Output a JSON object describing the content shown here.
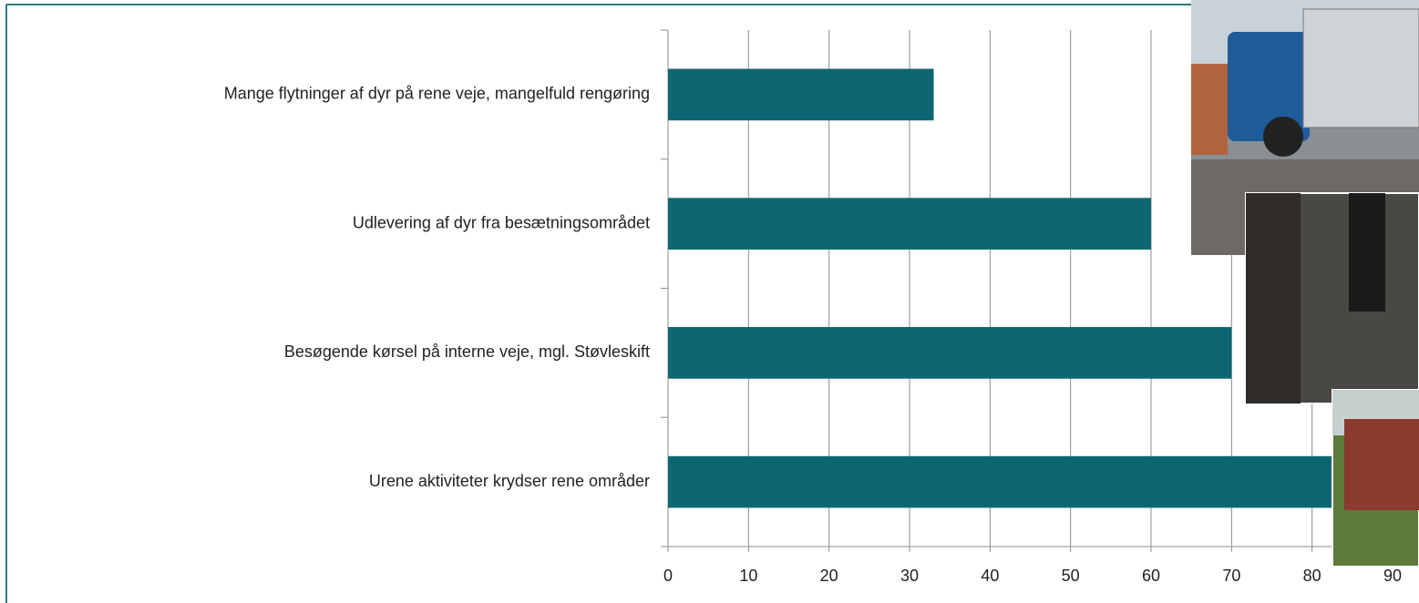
{
  "chart_data": {
    "type": "bar",
    "orientation": "horizontal",
    "categories": [
      "Mange flytninger af dyr på rene veje, mangelfuld rengøring",
      "Udlevering af dyr fra besætningsområdet",
      "Besøgende kørsel på interne veje, mgl. Støvleskift",
      "Urene aktiviteter krydser rene områder"
    ],
    "values": [
      33,
      60,
      70,
      85
    ],
    "color": "#0e6673",
    "xlim": [
      0,
      90
    ],
    "xticks": [
      0,
      10,
      20,
      30,
      40,
      50,
      60,
      70,
      80,
      90
    ],
    "grid": true
  }
}
